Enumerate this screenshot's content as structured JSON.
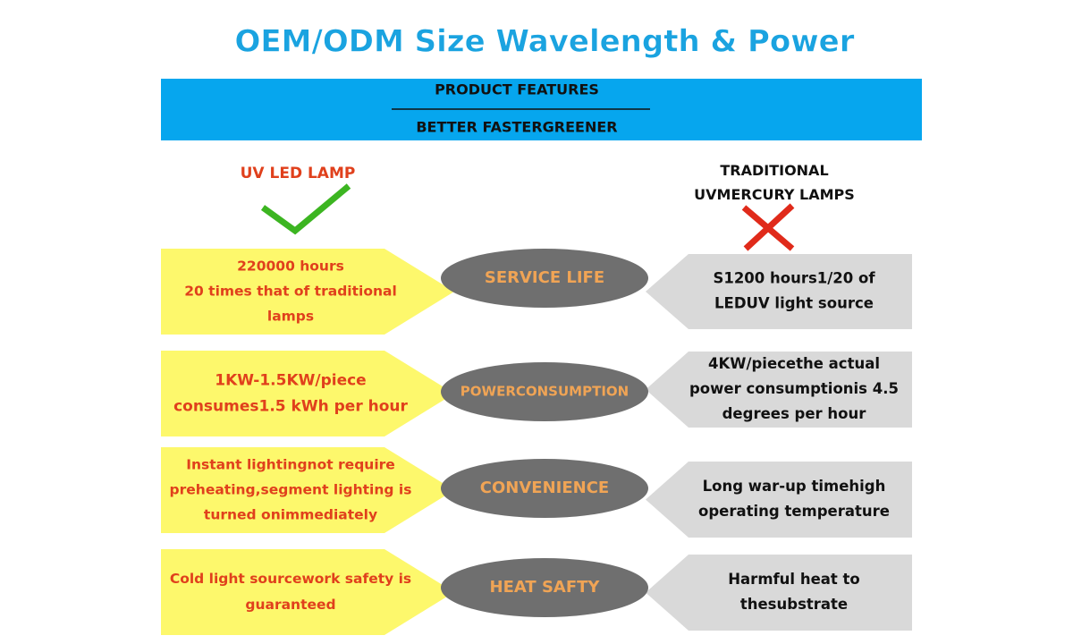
{
  "title": "OEM/ODM Size Wavelength & Power",
  "banner": {
    "line1": "PRODUCT FEATURES",
    "line2": "BETTER FASTERGREENER"
  },
  "left_header": "UV LED LAMP",
  "right_header": [
    "TRADITIONAL",
    "UVMERCURY LAMPS"
  ],
  "rows": [
    {
      "left": [
        "220000 hours",
        "20 times that of traditional",
        "lamps"
      ],
      "label": "SERVICE LIFE",
      "right": [
        "S1200 hours1/20 of",
        "LEDUV light source"
      ]
    },
    {
      "left": [
        "1KW-1.5KW/piece",
        "consumes1.5 kWh per hour"
      ],
      "label": "POWERCONSUMPTION",
      "right": [
        "4KW/piecethe actual",
        "power consumptionis 4.5",
        "degrees per hour"
      ]
    },
    {
      "left": [
        "Instant lightingnot require",
        "preheating,segment lighting is",
        "turned onimmediately"
      ],
      "label": "CONVENIENCE",
      "right": [
        "Long war-up timehigh",
        "operating temperature"
      ]
    },
    {
      "left": [
        "Cold light sourcework safety is",
        "guaranteed"
      ],
      "label": "HEAT SAFTY",
      "right": [
        "Harmful heat to",
        "thesubstrate"
      ]
    }
  ]
}
